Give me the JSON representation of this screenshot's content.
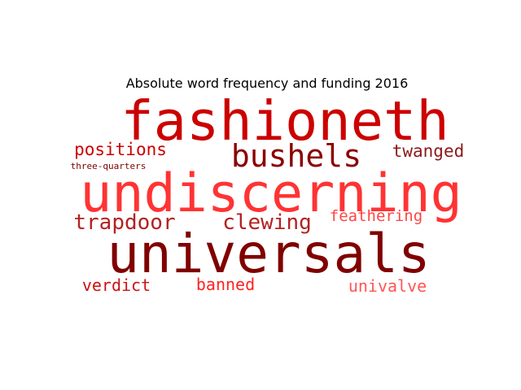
{
  "title": "Absolute word frequency and funding 2016",
  "chart_data": {
    "type": "wordcloud",
    "title": "Absolute word frequency and funding 2016",
    "words": [
      {
        "text": "fashioneth",
        "weight": 67,
        "color": "#cc0000"
      },
      {
        "text": "undiscerning",
        "weight": 65,
        "color": "#ff3333"
      },
      {
        "text": "universals",
        "weight": 66,
        "color": "#800000"
      },
      {
        "text": "bushels",
        "weight": 38,
        "color": "#8b0000"
      },
      {
        "text": "clewing",
        "weight": 26,
        "color": "#b22222"
      },
      {
        "text": "trapdoor",
        "weight": 26,
        "color": "#b22222"
      },
      {
        "text": "positions",
        "weight": 21,
        "color": "#cc0000"
      },
      {
        "text": "twanged",
        "weight": 21,
        "color": "#8b1a1a"
      },
      {
        "text": "feathering",
        "weight": 19,
        "color": "#ff4444"
      },
      {
        "text": "verdict",
        "weight": 20,
        "color": "#cc1111"
      },
      {
        "text": "banned",
        "weight": 20,
        "color": "#ff2222"
      },
      {
        "text": "univalve",
        "weight": 20,
        "color": "#ff5555"
      },
      {
        "text": "three-quarters",
        "weight": 11,
        "color": "#7a0000"
      }
    ]
  }
}
